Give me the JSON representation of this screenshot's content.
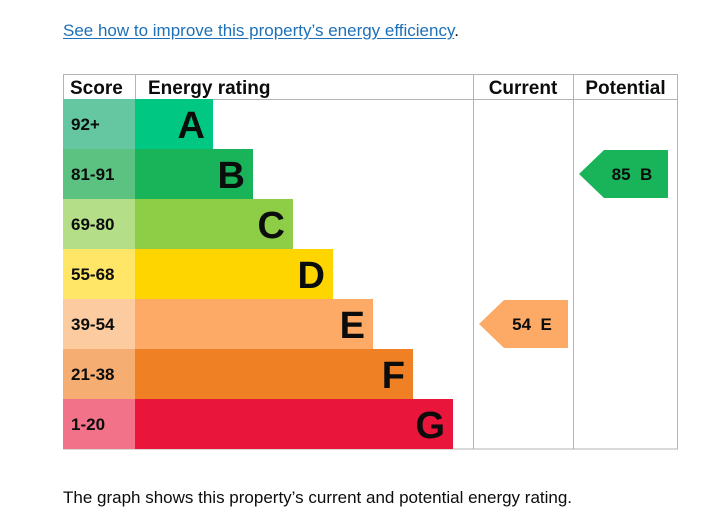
{
  "link": {
    "text": "See how to improve this property’s energy efficiency",
    "suffix": "."
  },
  "footer": {
    "text": "The graph shows this property’s current and potential energy rating."
  },
  "chart_data": {
    "type": "bar",
    "headers": {
      "score": "Score",
      "rating": "Energy rating",
      "current": "Current",
      "potential": "Potential"
    },
    "bands": [
      {
        "letter": "A",
        "range": "92+",
        "color": "#00c781",
        "score_color": "#64c7a1"
      },
      {
        "letter": "B",
        "range": "81-91",
        "color": "#19b459",
        "score_color": "#5bc281"
      },
      {
        "letter": "C",
        "range": "69-80",
        "color": "#8dce46",
        "score_color": "#b4df88"
      },
      {
        "letter": "D",
        "range": "55-68",
        "color": "#ffd500",
        "score_color": "#ffe666"
      },
      {
        "letter": "E",
        "range": "39-54",
        "color": "#fcaa65",
        "score_color": "#fdcba0"
      },
      {
        "letter": "F",
        "range": "21-38",
        "color": "#ef8023",
        "score_color": "#f5ad72"
      },
      {
        "letter": "G",
        "range": "1-20",
        "color": "#e9153b",
        "score_color": "#f27289"
      }
    ],
    "current": {
      "score": "54",
      "letter": "E",
      "color": "#fcaa65"
    },
    "potential": {
      "score": "85",
      "letter": "B",
      "color": "#19b459"
    }
  }
}
